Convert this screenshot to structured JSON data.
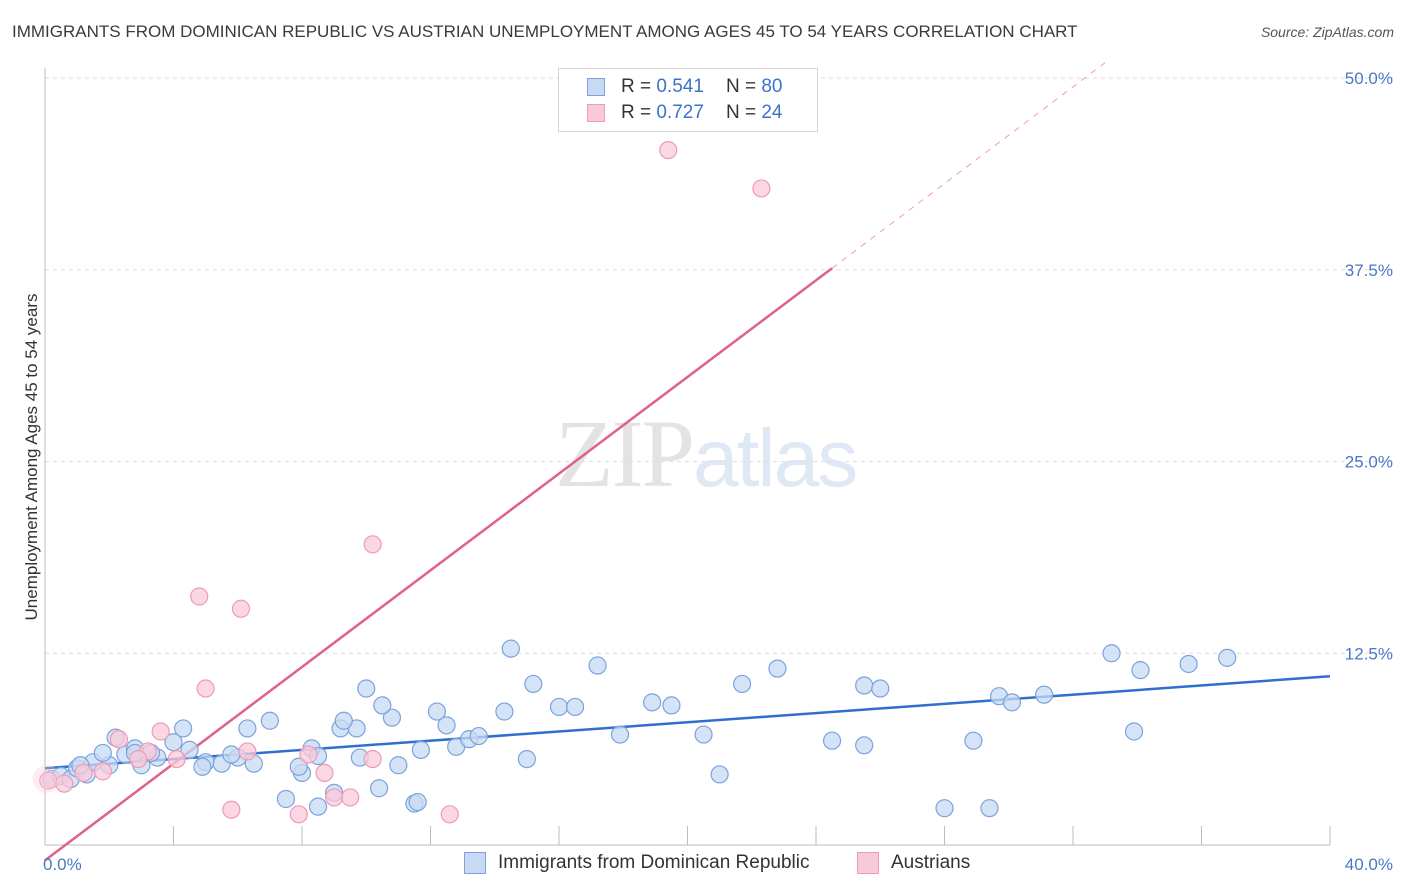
{
  "title": "IMMIGRANTS FROM DOMINICAN REPUBLIC VS AUSTRIAN UNEMPLOYMENT AMONG AGES 45 TO 54 YEARS CORRELATION CHART",
  "source": "Source: ZipAtlas.com",
  "watermark": {
    "zip": "ZIP",
    "atlas": "atlas"
  },
  "legend": {
    "series1": {
      "r_label": "R =",
      "r_value": "0.541",
      "n_label": "N =",
      "n_value": "80"
    },
    "series2": {
      "r_label": "R =",
      "r_value": "0.727",
      "n_label": "N =",
      "n_value": "24"
    }
  },
  "bottom_legend": {
    "series1": "Immigrants from Dominican Republic",
    "series2": "Austrians"
  },
  "colors": {
    "blue_fill": "#c7d9f3",
    "blue_stroke": "#7aa3dd",
    "blue_line": "#2e6fcf",
    "pink_fill": "#f8cad9",
    "pink_stroke": "#ee9bb6",
    "pink_line": "#e0608a",
    "tick_text": "#4a78c4"
  },
  "chart_data": {
    "type": "scatter",
    "xlabel": "",
    "ylabel": "Unemployment Among Ages 45 to 54 years",
    "xlim": [
      0,
      40
    ],
    "ylim": [
      0,
      50
    ],
    "x_tick_labels": [
      {
        "value": 0,
        "label": "0.0%"
      },
      {
        "value": 40,
        "label": "40.0%"
      }
    ],
    "y_tick_labels": [
      {
        "value": 12.5,
        "label": "12.5%"
      },
      {
        "value": 25,
        "label": "25.0%"
      },
      {
        "value": 37.5,
        "label": "37.5%"
      },
      {
        "value": 50,
        "label": "50.0%"
      }
    ],
    "series": [
      {
        "name": "Immigrants from Dominican Republic",
        "color": "#7aa3dd",
        "trend": {
          "x0": 0,
          "y0": 5.0,
          "x1": 40,
          "y1": 11.0
        },
        "points": [
          {
            "x": 0.2,
            "y": 4.3
          },
          {
            "x": 0.5,
            "y": 4.5
          },
          {
            "x": 0.8,
            "y": 4.3
          },
          {
            "x": 1.0,
            "y": 5.0
          },
          {
            "x": 1.3,
            "y": 4.6
          },
          {
            "x": 1.5,
            "y": 5.4
          },
          {
            "x": 2.0,
            "y": 5.2
          },
          {
            "x": 2.5,
            "y": 5.9
          },
          {
            "x": 2.8,
            "y": 6.3
          },
          {
            "x": 3.0,
            "y": 5.2
          },
          {
            "x": 3.5,
            "y": 5.7
          },
          {
            "x": 4.0,
            "y": 6.7
          },
          {
            "x": 1.8,
            "y": 6.0
          },
          {
            "x": 2.8,
            "y": 6.0
          },
          {
            "x": 5.0,
            "y": 5.4
          },
          {
            "x": 5.5,
            "y": 5.3
          },
          {
            "x": 6.0,
            "y": 5.7
          },
          {
            "x": 4.5,
            "y": 6.2
          },
          {
            "x": 5.8,
            "y": 5.9
          },
          {
            "x": 1.1,
            "y": 5.2
          },
          {
            "x": 2.2,
            "y": 7.0
          },
          {
            "x": 4.3,
            "y": 7.6
          },
          {
            "x": 6.5,
            "y": 5.3
          },
          {
            "x": 8.3,
            "y": 6.3
          },
          {
            "x": 8.5,
            "y": 5.8
          },
          {
            "x": 8.0,
            "y": 4.7
          },
          {
            "x": 6.3,
            "y": 7.6
          },
          {
            "x": 7.0,
            "y": 8.1
          },
          {
            "x": 9.2,
            "y": 7.6
          },
          {
            "x": 9.8,
            "y": 5.7
          },
          {
            "x": 9.7,
            "y": 7.6
          },
          {
            "x": 10.8,
            "y": 8.3
          },
          {
            "x": 10.0,
            "y": 10.2
          },
          {
            "x": 10.5,
            "y": 9.1
          },
          {
            "x": 11.0,
            "y": 5.2
          },
          {
            "x": 11.7,
            "y": 6.2
          },
          {
            "x": 12.5,
            "y": 7.8
          },
          {
            "x": 12.2,
            "y": 8.7
          },
          {
            "x": 12.8,
            "y": 6.4
          },
          {
            "x": 13.2,
            "y": 6.9
          },
          {
            "x": 13.5,
            "y": 7.1
          },
          {
            "x": 14.3,
            "y": 8.7
          },
          {
            "x": 14.5,
            "y": 12.8
          },
          {
            "x": 15.0,
            "y": 5.6
          },
          {
            "x": 15.2,
            "y": 10.5
          },
          {
            "x": 16.0,
            "y": 9.0
          },
          {
            "x": 16.5,
            "y": 9.0
          },
          {
            "x": 17.2,
            "y": 11.7
          },
          {
            "x": 17.9,
            "y": 7.2
          },
          {
            "x": 18.9,
            "y": 9.3
          },
          {
            "x": 19.5,
            "y": 9.1
          },
          {
            "x": 20.5,
            "y": 7.2
          },
          {
            "x": 21.0,
            "y": 4.6
          },
          {
            "x": 21.7,
            "y": 10.5
          },
          {
            "x": 22.8,
            "y": 11.5
          },
          {
            "x": 24.5,
            "y": 6.8
          },
          {
            "x": 25.5,
            "y": 6.5
          },
          {
            "x": 25.5,
            "y": 10.4
          },
          {
            "x": 26.0,
            "y": 10.2
          },
          {
            "x": 28.0,
            "y": 2.4
          },
          {
            "x": 28.9,
            "y": 6.8
          },
          {
            "x": 29.4,
            "y": 2.4
          },
          {
            "x": 29.7,
            "y": 9.7
          },
          {
            "x": 30.1,
            "y": 9.3
          },
          {
            "x": 31.1,
            "y": 9.8
          },
          {
            "x": 33.2,
            "y": 12.5
          },
          {
            "x": 33.9,
            "y": 7.4
          },
          {
            "x": 34.1,
            "y": 11.4
          },
          {
            "x": 35.6,
            "y": 11.8
          },
          {
            "x": 36.8,
            "y": 12.2
          },
          {
            "x": 4.9,
            "y": 5.1
          },
          {
            "x": 7.5,
            "y": 3.0
          },
          {
            "x": 8.5,
            "y": 2.5
          },
          {
            "x": 9.0,
            "y": 3.4
          },
          {
            "x": 10.4,
            "y": 3.7
          },
          {
            "x": 11.5,
            "y": 2.7
          },
          {
            "x": 11.6,
            "y": 2.8
          },
          {
            "x": 7.9,
            "y": 5.1
          },
          {
            "x": 3.3,
            "y": 6.0
          },
          {
            "x": 9.3,
            "y": 8.1
          }
        ]
      },
      {
        "name": "Austrians",
        "color": "#ee9bb6",
        "trend": {
          "x0": 0,
          "y0": -1.0,
          "x1": 24.5,
          "y1": 37.6,
          "dash_x1": 33.0,
          "dash_y1": 51.0
        },
        "points": [
          {
            "x": 0.1,
            "y": 4.2
          },
          {
            "x": 0.6,
            "y": 4.0
          },
          {
            "x": 1.2,
            "y": 4.7
          },
          {
            "x": 2.3,
            "y": 6.9
          },
          {
            "x": 1.8,
            "y": 4.8
          },
          {
            "x": 3.2,
            "y": 6.1
          },
          {
            "x": 3.6,
            "y": 7.4
          },
          {
            "x": 5.0,
            "y": 10.2
          },
          {
            "x": 4.8,
            "y": 16.2
          },
          {
            "x": 6.1,
            "y": 15.4
          },
          {
            "x": 6.3,
            "y": 6.1
          },
          {
            "x": 8.7,
            "y": 4.7
          },
          {
            "x": 9.0,
            "y": 3.1
          },
          {
            "x": 10.2,
            "y": 5.6
          },
          {
            "x": 10.2,
            "y": 19.6
          },
          {
            "x": 12.6,
            "y": 2.0
          },
          {
            "x": 5.8,
            "y": 2.3
          },
          {
            "x": 7.9,
            "y": 2.0
          },
          {
            "x": 19.4,
            "y": 45.3
          },
          {
            "x": 22.3,
            "y": 42.8
          },
          {
            "x": 2.9,
            "y": 5.6
          },
          {
            "x": 8.2,
            "y": 5.9
          },
          {
            "x": 9.5,
            "y": 3.1
          },
          {
            "x": 4.1,
            "y": 5.6
          }
        ]
      }
    ]
  }
}
